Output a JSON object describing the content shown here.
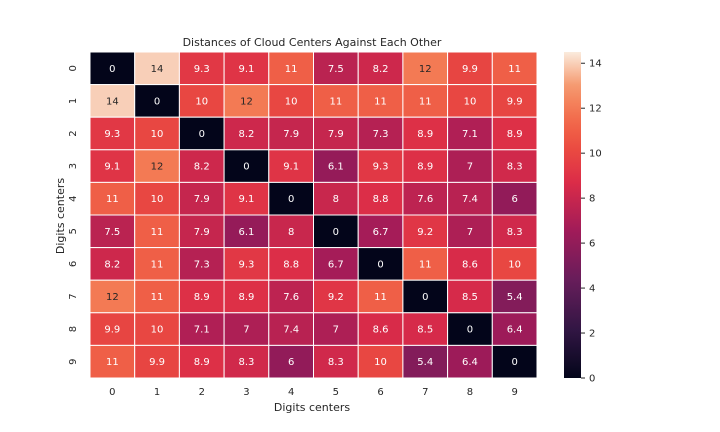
{
  "chart_data": {
    "type": "heatmap",
    "title": "Distances of Cloud Centers Against Each Other",
    "xlabel": "Digits centers",
    "ylabel": "Digits centers",
    "x_categories": [
      "0",
      "1",
      "2",
      "3",
      "4",
      "5",
      "6",
      "7",
      "8",
      "9"
    ],
    "y_categories": [
      "0",
      "1",
      "2",
      "3",
      "4",
      "5",
      "6",
      "7",
      "8",
      "9"
    ],
    "values": [
      [
        0,
        14,
        9.3,
        9.1,
        11,
        7.5,
        8.2,
        12,
        9.9,
        11
      ],
      [
        14,
        0,
        10,
        12,
        10,
        11,
        11,
        11,
        10,
        9.9
      ],
      [
        9.3,
        10,
        0,
        8.2,
        7.9,
        7.9,
        7.3,
        8.9,
        7.1,
        8.9
      ],
      [
        9.1,
        12,
        8.2,
        0,
        9.1,
        6.1,
        9.3,
        8.9,
        7,
        8.3
      ],
      [
        11,
        10,
        7.9,
        9.1,
        0,
        8,
        8.8,
        7.6,
        7.4,
        6
      ],
      [
        7.5,
        11,
        7.9,
        6.1,
        8,
        0,
        6.7,
        9.2,
        7,
        8.3
      ],
      [
        8.2,
        11,
        7.3,
        9.3,
        8.8,
        6.7,
        0,
        11,
        8.6,
        10
      ],
      [
        12,
        11,
        8.9,
        8.9,
        7.6,
        9.2,
        11,
        0,
        8.5,
        5.4
      ],
      [
        9.9,
        10,
        7.1,
        7,
        7.4,
        7,
        8.6,
        8.5,
        0,
        6.4
      ],
      [
        11,
        9.9,
        8.9,
        8.3,
        6,
        8.3,
        10,
        5.4,
        6.4,
        0
      ]
    ],
    "colorbar": {
      "min": 0,
      "max": 14.5,
      "ticks": [
        0,
        2,
        4,
        6,
        8,
        10,
        12,
        14
      ],
      "colormap": "rocket"
    },
    "annotated": true,
    "grid": false,
    "legend": "colorbar-right"
  }
}
